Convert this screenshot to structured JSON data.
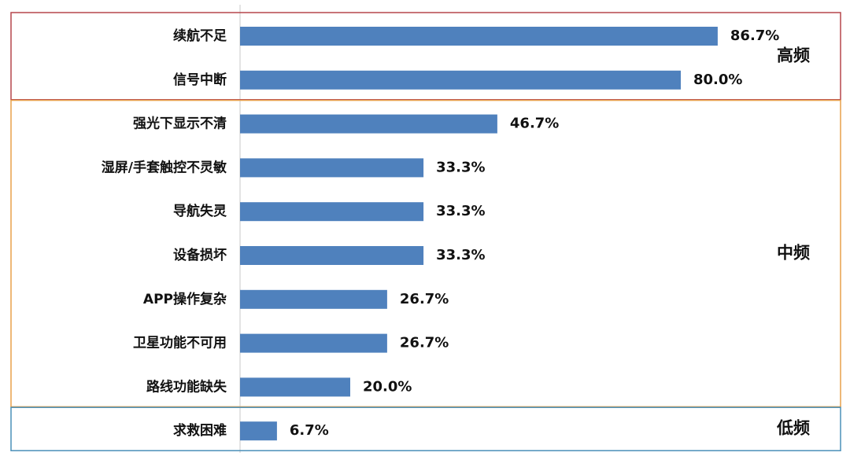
{
  "chart_data": {
    "type": "bar",
    "orientation": "horizontal",
    "bar_color": "#4f81bd",
    "groups": [
      {
        "name": "高频",
        "color": "#c0504d",
        "border_color": "#b5464b",
        "categories": [
          "续航不足",
          "信号中断"
        ],
        "values": [
          86.7,
          80.0
        ],
        "value_labels": [
          "86.7%",
          "80.0%"
        ]
      },
      {
        "name": "中频",
        "color": "#f0a040",
        "border_color": "#e8a04a",
        "categories": [
          "强光下显示不清",
          "湿屏/手套触控不灵敏",
          "导航失灵",
          "设备损坏",
          "APP操作复杂",
          "卫星功能不可用",
          "路线功能缺失"
        ],
        "values": [
          46.7,
          33.3,
          33.3,
          33.3,
          26.7,
          26.7,
          20.0
        ],
        "value_labels": [
          "46.7%",
          "33.3%",
          "33.3%",
          "33.3%",
          "26.7%",
          "26.7%",
          "20.0%"
        ]
      },
      {
        "name": "低频",
        "color": "#4f81bd",
        "border_color": "#4a90b8",
        "categories": [
          "求救困难"
        ],
        "values": [
          6.7
        ],
        "value_labels": [
          "6.7%"
        ]
      }
    ]
  }
}
